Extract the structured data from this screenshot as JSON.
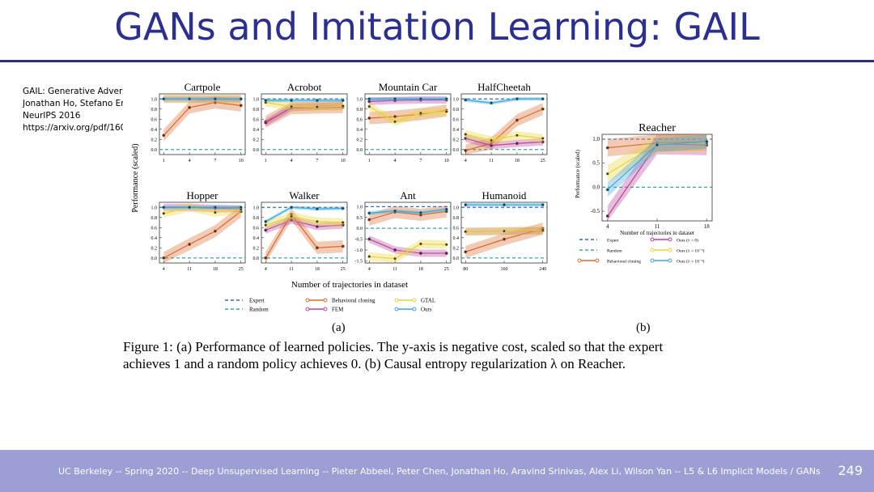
{
  "slide": {
    "title": "GANs and Imitation Learning: GAIL",
    "citation_lines": [
      "GAIL:  Generative Advers",
      "Jonathan Ho, Stefano Erm",
      "NeurIPS 2016",
      "https://arxiv.org/pdf/160"
    ],
    "footer": "UC Berkeley -- Spring 2020 -- Deep Unsupervised Learning -- Pieter Abbeel, Peter Chen, Jonathan Ho, Aravind Srinivas, Alex Li, Wilson Yan -- L5 & L6 Implicit Models / GANs",
    "page_number": "249"
  },
  "figure": {
    "ylabel_a": "Performance (scaled)",
    "xlabel_a": "Number of trajectories in dataset",
    "panel_a_label": "(a)",
    "panel_b_label": "(b)",
    "caption_line1": "Figure 1: (a) Performance of learned policies. The y-axis is negative cost, scaled so that the expert",
    "caption_line2": "achieves 1 and a random policy achieves 0. (b) Causal entropy regularization λ on Reacher.",
    "legend_a": [
      "Expert",
      "Random",
      "Behavioral cloning",
      "FEM",
      "GTAL",
      "Ours"
    ],
    "legend_b": [
      "Expert",
      "Random",
      "Behavioral cloning",
      "Ours (λ = 0)",
      "Ours (λ = 10⁻³)",
      "Ours (λ = 10⁻²)"
    ],
    "ylabel_b": "Performance (scaled)",
    "xlabel_b": "Number of trajectories in dataset"
  },
  "colors": {
    "bc": "#d86a2a",
    "fem": "#b6459b",
    "gtal": "#e8d43a",
    "ours": "#3fa7dc",
    "expert": "#2f6fc0",
    "random": "#3aa69a",
    "title": "#2b2f8f"
  },
  "chart_data": [
    {
      "type": "line",
      "title": "Cartpole",
      "x": [
        1,
        4,
        7,
        10
      ],
      "ylim": [
        -0.1,
        1.1
      ],
      "yticks": [
        "0.0",
        "0.2",
        "0.4",
        "0.6",
        "0.8",
        "1.0"
      ],
      "series": [
        {
          "name": "Behavioral cloning",
          "values": [
            0.28,
            0.83,
            0.93,
            0.87
          ]
        },
        {
          "name": "FEM",
          "values": [
            1.0,
            1.0,
            1.0,
            1.0
          ]
        },
        {
          "name": "GTAL",
          "values": [
            1.0,
            1.0,
            1.0,
            1.0
          ]
        },
        {
          "name": "Ours",
          "values": [
            1.0,
            1.0,
            1.0,
            1.0
          ]
        }
      ]
    },
    {
      "type": "line",
      "title": "Acrobot",
      "x": [
        1,
        4,
        7,
        10
      ],
      "ylim": [
        -0.1,
        1.1
      ],
      "yticks": [
        "0.0",
        "0.2",
        "0.4",
        "0.6",
        "0.8",
        "1.0"
      ],
      "series": [
        {
          "name": "Behavioral cloning",
          "values": [
            0.55,
            0.82,
            0.83,
            0.84
          ]
        },
        {
          "name": "FEM",
          "values": [
            0.53,
            0.83,
            0.85,
            0.86
          ]
        },
        {
          "name": "GTAL",
          "values": [
            0.93,
            0.85,
            0.84,
            0.86
          ]
        },
        {
          "name": "Ours",
          "values": [
            0.97,
            0.97,
            0.97,
            0.97
          ]
        }
      ]
    },
    {
      "type": "line",
      "title": "Mountain Car",
      "x": [
        1,
        4,
        7,
        10
      ],
      "ylim": [
        -0.1,
        1.1
      ],
      "yticks": [
        "0.0",
        "0.2",
        "0.4",
        "0.6",
        "0.8",
        "1.0"
      ],
      "series": [
        {
          "name": "Behavioral cloning",
          "values": [
            0.62,
            0.65,
            0.7,
            0.77
          ]
        },
        {
          "name": "FEM",
          "values": [
            0.95,
            0.97,
            0.98,
            0.98
          ]
        },
        {
          "name": "GTAL",
          "values": [
            0.85,
            0.55,
            0.72,
            0.75
          ]
        },
        {
          "name": "Ours",
          "values": [
            1.0,
            1.0,
            1.0,
            1.0
          ]
        }
      ]
    },
    {
      "type": "line",
      "title": "HalfCheetah",
      "x": [
        4,
        11,
        18,
        25
      ],
      "ylim": [
        -0.1,
        1.1
      ],
      "yticks": [
        "0.0",
        "0.2",
        "0.4",
        "0.6",
        "0.8",
        "1.0"
      ],
      "series": [
        {
          "name": "Behavioral cloning",
          "values": [
            -0.02,
            0.12,
            0.58,
            0.8
          ]
        },
        {
          "name": "FEM",
          "values": [
            0.22,
            0.08,
            0.12,
            0.15
          ]
        },
        {
          "name": "GTAL",
          "values": [
            0.3,
            0.18,
            0.28,
            0.22
          ]
        },
        {
          "name": "Ours",
          "values": [
            0.98,
            0.92,
            1.0,
            1.0
          ]
        }
      ]
    },
    {
      "type": "line",
      "title": "Hopper",
      "x": [
        4,
        11,
        18,
        25
      ],
      "ylim": [
        -0.1,
        1.1
      ],
      "yticks": [
        "0.0",
        "0.2",
        "0.4",
        "0.6",
        "0.8",
        "1.0"
      ],
      "series": [
        {
          "name": "Behavioral cloning",
          "values": [
            0.0,
            0.27,
            0.53,
            0.92
          ]
        },
        {
          "name": "FEM",
          "values": [
            1.0,
            1.0,
            0.98,
            0.97
          ]
        },
        {
          "name": "GTAL",
          "values": [
            0.88,
            1.0,
            0.9,
            0.96
          ]
        },
        {
          "name": "Ours",
          "values": [
            1.0,
            1.0,
            1.0,
            1.0
          ]
        }
      ]
    },
    {
      "type": "line",
      "title": "Walker",
      "x": [
        4,
        11,
        18,
        25
      ],
      "ylim": [
        -0.1,
        1.1
      ],
      "yticks": [
        "0.0",
        "0.2",
        "0.4",
        "0.6",
        "0.8",
        "1.0"
      ],
      "series": [
        {
          "name": "Behavioral cloning",
          "values": [
            0.0,
            0.86,
            0.2,
            0.23
          ]
        },
        {
          "name": "FEM",
          "values": [
            0.55,
            0.75,
            0.62,
            0.65
          ]
        },
        {
          "name": "GTAL",
          "values": [
            0.65,
            0.82,
            0.72,
            0.7
          ]
        },
        {
          "name": "Ours",
          "values": [
            0.72,
            1.0,
            0.97,
            0.98
          ]
        }
      ]
    },
    {
      "type": "line",
      "title": "Ant",
      "x": [
        4,
        11,
        18,
        25
      ],
      "ylim": [
        -1.6,
        1.2
      ],
      "yticks": [
        "-1.5",
        "-1.0",
        "-0.5",
        "0.0",
        "0.5",
        "1.0"
      ],
      "series": [
        {
          "name": "Behavioral cloning",
          "values": [
            0.4,
            0.75,
            0.62,
            0.78
          ]
        },
        {
          "name": "FEM",
          "values": [
            -0.5,
            -1.0,
            -1.15,
            -1.15
          ]
        },
        {
          "name": "GTAL",
          "values": [
            -1.3,
            -1.4,
            -0.72,
            -0.75
          ]
        },
        {
          "name": "Ours",
          "values": [
            0.7,
            0.8,
            0.72,
            0.88
          ]
        }
      ]
    },
    {
      "type": "line",
      "title": "Humanoid",
      "x": [
        80,
        160,
        240
      ],
      "ylim": [
        -0.1,
        1.1
      ],
      "yticks": [
        "0.0",
        "0.2",
        "0.4",
        "0.6",
        "0.8",
        "1.0"
      ],
      "series": [
        {
          "name": "Behavioral cloning",
          "values": [
            0.12,
            0.37,
            0.58
          ]
        },
        {
          "name": "FEM",
          "values": [
            0.52,
            0.53,
            0.54
          ]
        },
        {
          "name": "GTAL",
          "values": [
            0.52,
            0.53,
            0.55
          ]
        },
        {
          "name": "Ours",
          "values": [
            1.05,
            1.05,
            1.05
          ]
        }
      ]
    },
    {
      "type": "line",
      "title": "Reacher",
      "x": [
        4,
        11,
        18
      ],
      "ylim": [
        -0.7,
        1.1
      ],
      "yticks": [
        "-0.5",
        "0.0",
        "0.5",
        "1.0"
      ],
      "series": [
        {
          "name": "Behavioral cloning",
          "values": [
            0.82,
            0.92,
            0.95
          ]
        },
        {
          "name": "Ours (λ = 0)",
          "values": [
            -0.6,
            0.9,
            0.88
          ]
        },
        {
          "name": "Ours (λ = 10⁻³)",
          "values": [
            0.28,
            0.9,
            0.92
          ]
        },
        {
          "name": "Ours (λ = 10⁻²)",
          "values": [
            -0.05,
            0.88,
            0.95
          ]
        }
      ]
    }
  ]
}
